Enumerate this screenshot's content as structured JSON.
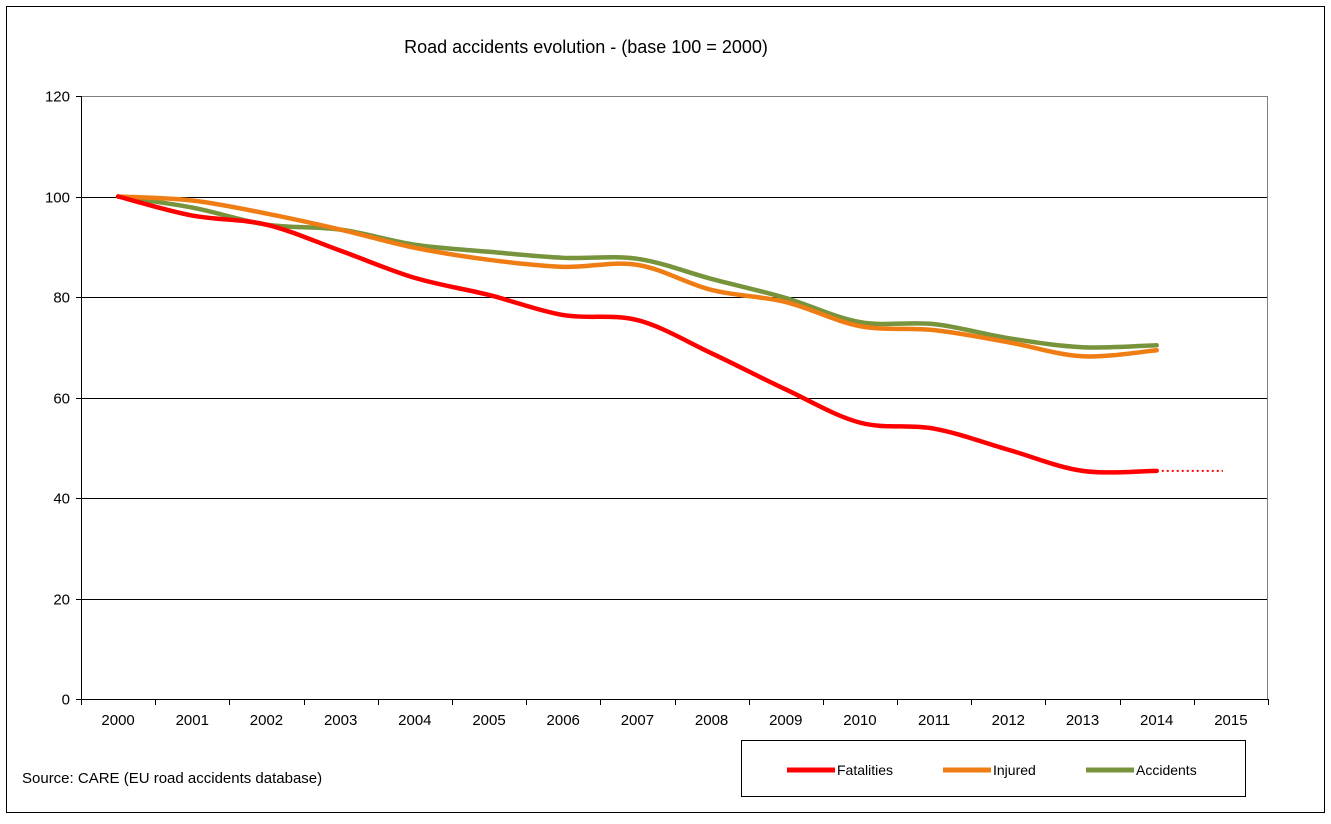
{
  "chart_data": {
    "type": "line",
    "title": "Road accidents evolution  - (base 100 =  2000)",
    "source": "Source: CARE (EU road accidents database)",
    "categories": [
      "2000",
      "2001",
      "2002",
      "2003",
      "2004",
      "2005",
      "2006",
      "2007",
      "2008",
      "2009",
      "2010",
      "2011",
      "2012",
      "2013",
      "2014",
      "2015"
    ],
    "ylim": [
      0,
      120
    ],
    "yticks": [
      0,
      20,
      40,
      60,
      80,
      100,
      120
    ],
    "grid": true,
    "legend_position": "bottom-right",
    "series": [
      {
        "name": "Fatalities",
        "color": "#ff0000",
        "values": [
          100,
          96.2,
          94.4,
          89.2,
          83.8,
          80.4,
          76.4,
          75.4,
          68.8,
          61.6,
          55,
          53.8,
          49.6,
          45.4,
          45.4,
          null
        ],
        "projection": {
          "from": "2014",
          "to": "2015",
          "value": 45.4,
          "style": "dotted"
        }
      },
      {
        "name": "Injured",
        "color": "#f07c14",
        "values": [
          100,
          99.2,
          96.6,
          93.4,
          89.8,
          87.4,
          86,
          86.4,
          81.4,
          79,
          74.2,
          73.4,
          71,
          68.2,
          69.4,
          null
        ]
      },
      {
        "name": "Accidents",
        "color": "#77933c",
        "values": [
          100,
          97.8,
          94.4,
          93.4,
          90.4,
          89,
          87.8,
          87.6,
          83.6,
          79.8,
          75,
          74.6,
          71.8,
          70,
          70.4,
          null
        ]
      }
    ]
  }
}
